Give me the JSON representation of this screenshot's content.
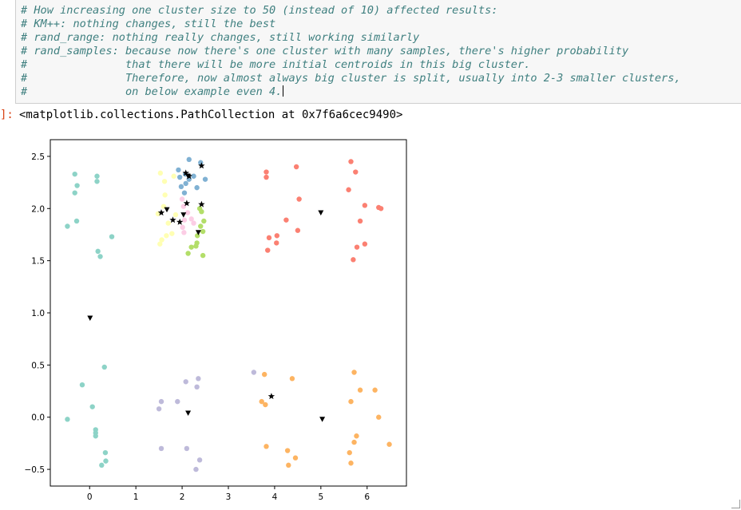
{
  "code_cell": {
    "lines": [
      "# How increasing one cluster size to 50 (instead of 10) affected results:",
      "# KM++: nothing changes, still the best",
      "# rand_range: nothing really changes, still working similarly",
      "# rand_samples: because now there's one cluster with many samples, there's higher probability",
      "#               that there will be more initial centroids in this big cluster.",
      "#               Therefore, now almost always big cluster is split, usually into 2-3 smaller clusters,",
      "#               on below example even 4."
    ]
  },
  "output": {
    "prompt": "]:",
    "text": "<matplotlib.collections.PathCollection at 0x7f6a6cec9490>"
  },
  "chart_data": {
    "type": "scatter",
    "title": "",
    "xlabel": "",
    "ylabel": "",
    "xlim": [
      -0.85,
      6.85
    ],
    "ylim": [
      -0.66,
      2.66
    ],
    "xticks": [
      0,
      1,
      2,
      3,
      4,
      5,
      6
    ],
    "xtick_labels": [
      "0",
      "1",
      "2",
      "3",
      "4",
      "5",
      "6"
    ],
    "yticks": [
      -0.5,
      0.0,
      0.5,
      1.0,
      1.5,
      2.0,
      2.5
    ],
    "ytick_labels": [
      "−0.5",
      "0.0",
      "0.5",
      "1.0",
      "1.5",
      "2.0",
      "2.5"
    ],
    "grid": false,
    "series": [
      {
        "color": "#8dd3c7",
        "marker": "circle",
        "points": [
          [
            -0.32,
            2.33
          ],
          [
            -0.27,
            2.22
          ],
          [
            -0.32,
            2.15
          ],
          [
            0.16,
            2.31
          ],
          [
            0.16,
            2.26
          ],
          [
            -0.28,
            1.88
          ],
          [
            -0.48,
            1.83
          ],
          [
            0.48,
            1.73
          ],
          [
            0.18,
            1.59
          ],
          [
            0.23,
            1.54
          ],
          [
            0.32,
            0.48
          ],
          [
            -0.16,
            0.31
          ],
          [
            0.06,
            0.1
          ],
          [
            0.13,
            -0.12
          ],
          [
            0.13,
            -0.15
          ],
          [
            0.13,
            -0.18
          ],
          [
            -0.48,
            -0.02
          ],
          [
            0.34,
            -0.34
          ],
          [
            0.35,
            -0.42
          ],
          [
            0.26,
            -0.46
          ]
        ]
      },
      {
        "color": "#ffffb3",
        "marker": "circle",
        "points": [
          [
            1.53,
            2.34
          ],
          [
            1.62,
            2.26
          ],
          [
            1.82,
            2.31
          ],
          [
            1.63,
            2.13
          ],
          [
            1.6,
            2.02
          ],
          [
            1.48,
            1.95
          ],
          [
            1.7,
            1.86
          ],
          [
            1.78,
            1.76
          ],
          [
            1.66,
            1.74
          ],
          [
            1.56,
            1.7
          ],
          [
            1.52,
            1.66
          ],
          [
            1.86,
            1.94
          ]
        ]
      },
      {
        "color": "#80b1d3",
        "marker": "circle",
        "points": [
          [
            2.15,
            2.47
          ],
          [
            2.4,
            2.44
          ],
          [
            1.92,
            2.37
          ],
          [
            1.95,
            2.3
          ],
          [
            2.07,
            2.33
          ],
          [
            2.25,
            2.31
          ],
          [
            2.5,
            2.28
          ],
          [
            2.08,
            2.24
          ],
          [
            1.98,
            2.21
          ],
          [
            2.32,
            2.2
          ],
          [
            2.15,
            2.28
          ],
          [
            2.05,
            2.15
          ]
        ]
      },
      {
        "color": "#fccde5",
        "marker": "circle",
        "points": [
          [
            2.0,
            2.09
          ],
          [
            2.03,
            2.02
          ],
          [
            2.12,
            1.96
          ],
          [
            2.2,
            1.9
          ],
          [
            2.05,
            1.89
          ],
          [
            2.01,
            1.82
          ],
          [
            2.04,
            1.77
          ],
          [
            2.25,
            1.86
          ]
        ]
      },
      {
        "color": "#b3de69",
        "marker": "circle",
        "points": [
          [
            2.38,
            2.0
          ],
          [
            2.42,
            1.97
          ],
          [
            2.47,
            1.88
          ],
          [
            2.4,
            1.83
          ],
          [
            2.45,
            1.78
          ],
          [
            2.33,
            1.74
          ],
          [
            2.32,
            1.67
          ],
          [
            2.3,
            1.64
          ],
          [
            2.2,
            1.63
          ],
          [
            2.13,
            1.57
          ],
          [
            2.45,
            1.55
          ]
        ]
      },
      {
        "color": "#fb8072",
        "marker": "circle",
        "points": [
          [
            3.82,
            2.35
          ],
          [
            3.82,
            2.3
          ],
          [
            4.47,
            2.4
          ],
          [
            4.53,
            2.09
          ],
          [
            4.25,
            1.89
          ],
          [
            3.88,
            1.72
          ],
          [
            4.05,
            1.74
          ],
          [
            4.04,
            1.67
          ],
          [
            4.5,
            1.79
          ],
          [
            3.85,
            1.6
          ],
          [
            5.65,
            2.45
          ],
          [
            5.75,
            2.35
          ],
          [
            5.6,
            2.18
          ],
          [
            5.95,
            2.03
          ],
          [
            6.25,
            2.01
          ],
          [
            6.3,
            2.0
          ],
          [
            5.85,
            1.88
          ],
          [
            5.95,
            1.66
          ],
          [
            5.78,
            1.63
          ],
          [
            5.7,
            1.51
          ]
        ]
      },
      {
        "color": "#bebada",
        "marker": "circle",
        "points": [
          [
            3.55,
            0.43
          ],
          [
            2.35,
            0.37
          ],
          [
            2.08,
            0.34
          ],
          [
            2.32,
            0.29
          ],
          [
            1.55,
            0.15
          ],
          [
            1.9,
            0.15
          ],
          [
            1.5,
            0.08
          ],
          [
            1.55,
            -0.3
          ],
          [
            2.1,
            -0.3
          ],
          [
            2.38,
            -0.41
          ],
          [
            2.3,
            -0.5
          ]
        ]
      },
      {
        "color": "#fdb462",
        "marker": "circle",
        "points": [
          [
            3.78,
            0.41
          ],
          [
            4.38,
            0.37
          ],
          [
            3.72,
            0.15
          ],
          [
            3.8,
            0.12
          ],
          [
            5.72,
            0.43
          ],
          [
            5.85,
            0.26
          ],
          [
            6.17,
            0.26
          ],
          [
            5.65,
            0.15
          ],
          [
            6.25,
            0.0
          ],
          [
            3.82,
            -0.28
          ],
          [
            4.28,
            -0.32
          ],
          [
            4.45,
            -0.39
          ],
          [
            4.3,
            -0.46
          ],
          [
            5.77,
            -0.18
          ],
          [
            5.72,
            -0.24
          ],
          [
            6.48,
            -0.26
          ],
          [
            5.62,
            -0.34
          ],
          [
            5.65,
            -0.44
          ]
        ]
      },
      {
        "color": "#000000",
        "marker": "star",
        "points": [
          [
            2.08,
            2.34
          ],
          [
            2.15,
            2.31
          ],
          [
            2.42,
            2.41
          ],
          [
            2.1,
            2.05
          ],
          [
            2.42,
            2.04
          ],
          [
            1.55,
            1.96
          ],
          [
            1.8,
            1.89
          ],
          [
            1.95,
            1.87
          ],
          [
            3.93,
            0.2
          ]
        ]
      },
      {
        "color": "#000000",
        "marker": "triangle-down",
        "points": [
          [
            2.13,
            2.31
          ],
          [
            1.67,
            1.99
          ],
          [
            2.03,
            1.94
          ],
          [
            2.35,
            1.77
          ],
          [
            5.0,
            1.96
          ],
          [
            0.01,
            0.95
          ],
          [
            2.13,
            0.04
          ],
          [
            5.03,
            -0.02
          ]
        ]
      }
    ]
  }
}
